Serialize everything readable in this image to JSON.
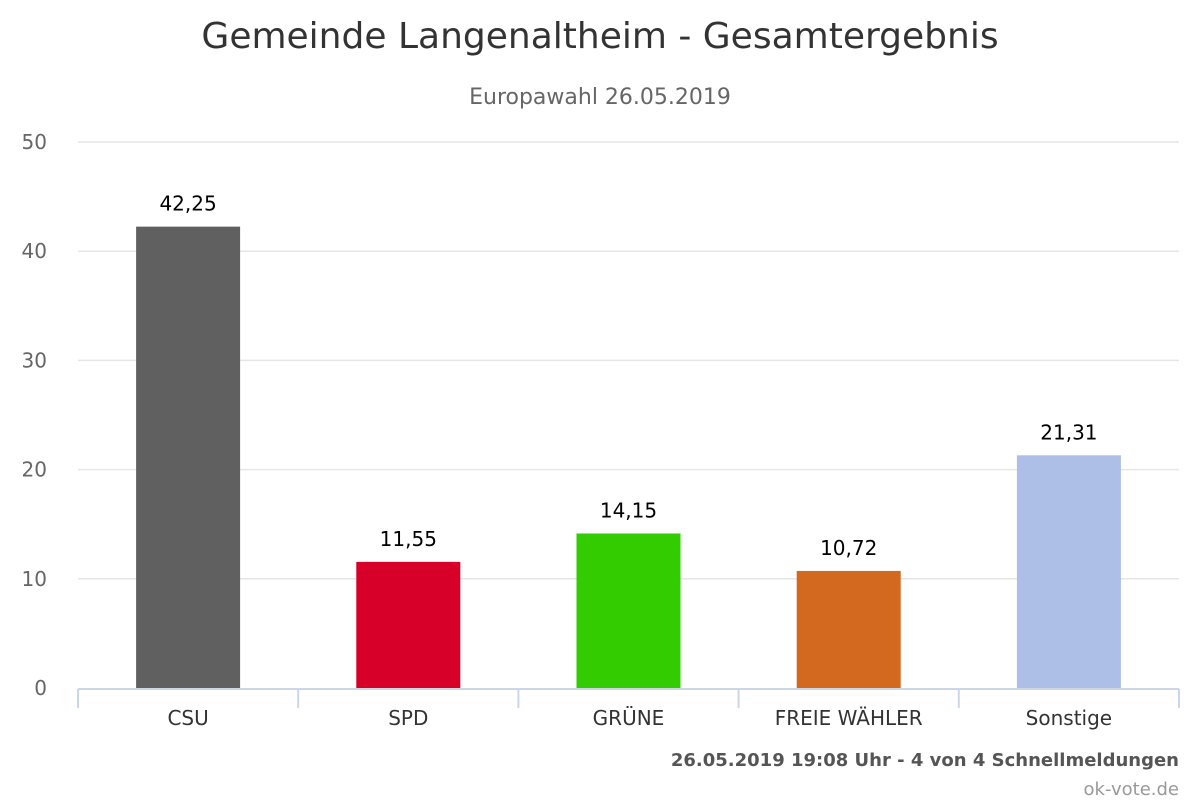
{
  "chart_data": {
    "type": "bar",
    "title": "Gemeinde Langenaltheim - Gesamtergebnis",
    "subtitle": "Europawahl 26.05.2019",
    "xlabel": "",
    "ylabel": "",
    "categories": [
      "CSU",
      "SPD",
      "GRÜNE",
      "FREIE WÄHLER",
      "Sonstige"
    ],
    "values": [
      42.25,
      11.55,
      14.15,
      10.72,
      21.31
    ],
    "value_labels": [
      "42,25",
      "11,55",
      "14,15",
      "10,72",
      "21,31"
    ],
    "colors": [
      "#606060",
      "#d70029",
      "#33cc00",
      "#d2691e",
      "#adbfe6"
    ],
    "ylim": [
      0,
      50
    ],
    "yticks": [
      0,
      10,
      20,
      30,
      40,
      50
    ],
    "grid": true,
    "legend": "none"
  },
  "footer": {
    "timestamp": "26.05.2019 19:08 Uhr - 4 von 4 Schnellmeldungen",
    "credit": "ok-vote.de"
  }
}
